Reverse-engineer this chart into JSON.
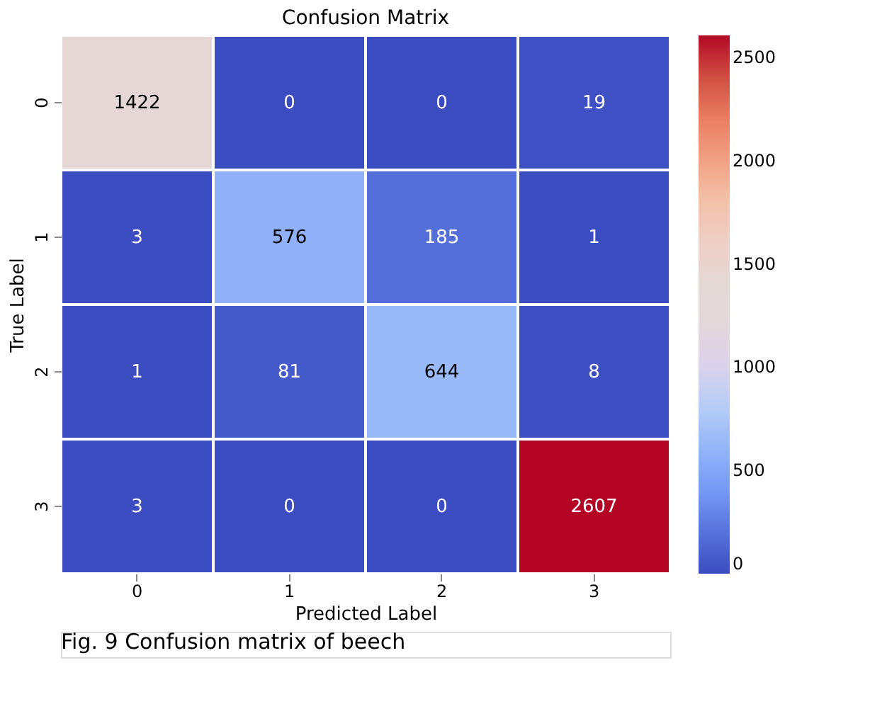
{
  "chart_data": {
    "type": "heatmap",
    "title": "Confusion Matrix",
    "xlabel": "Predicted Label",
    "ylabel": "True Label",
    "categories": [
      "0",
      "1",
      "2",
      "3"
    ],
    "y_categories": [
      "0",
      "1",
      "2",
      "3"
    ],
    "cells": [
      [
        1422,
        0,
        0,
        19
      ],
      [
        3,
        576,
        185,
        1
      ],
      [
        1,
        81,
        644,
        8
      ],
      [
        3,
        0,
        0,
        2607
      ]
    ],
    "data_labels": true,
    "clim": [
      0,
      2607
    ],
    "cticks": [
      0,
      500,
      1000,
      1500,
      2000,
      2500
    ],
    "annotations": [
      "Fig. 9  Confusion matrix of beech"
    ]
  }
}
